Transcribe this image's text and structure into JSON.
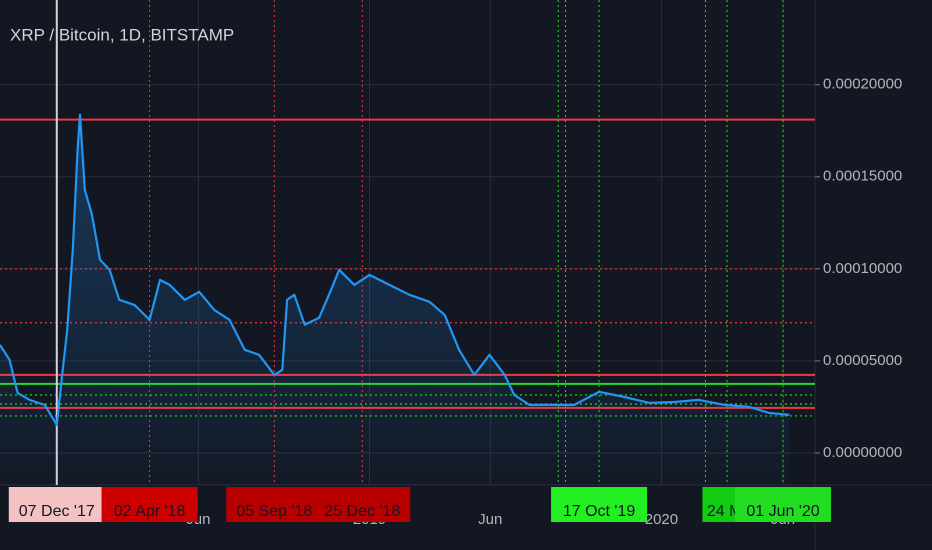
{
  "chart_data": {
    "type": "line",
    "title": "XRP / Bitcoin, 1D, BITSTAMP",
    "color": "#2196f3",
    "grid": true,
    "x": [
      "2017-09-26",
      "2017-10-08",
      "2017-10-18",
      "2017-11-02",
      "2017-11-21",
      "2017-12-06",
      "2017-12-12",
      "2017-12-19",
      "2017-12-26",
      "2018-01-01",
      "2018-01-04",
      "2018-01-10",
      "2018-01-19",
      "2018-01-29",
      "2018-02-10",
      "2018-02-22",
      "2018-03-13",
      "2018-04-01",
      "2018-04-14",
      "2018-04-26",
      "2018-05-15",
      "2018-06-02",
      "2018-06-21",
      "2018-07-10",
      "2018-07-29",
      "2018-08-16",
      "2018-09-04",
      "2018-09-14",
      "2018-09-20",
      "2018-09-29",
      "2018-10-12",
      "2018-10-30",
      "2018-11-14",
      "2018-11-24",
      "2018-12-13",
      "2019-01-01",
      "2019-01-26",
      "2019-02-20",
      "2019-03-17",
      "2019-04-05",
      "2019-04-23",
      "2019-05-12",
      "2019-05-31",
      "2019-06-19",
      "2019-07-01",
      "2019-07-20",
      "2019-08-14",
      "2019-09-14",
      "2019-10-15",
      "2019-11-16",
      "2019-12-17",
      "2020-01-17",
      "2020-02-17",
      "2020-03-20",
      "2020-04-20",
      "2020-05-15",
      "2020-06-09"
    ],
    "values": [
      5.87e-05,
      5.05e-05,
      3.26e-05,
      2.88e-05,
      2.61e-05,
      1.52e-05,
      3.97e-05,
      6.68e-05,
      0.0001103,
      0.0001647,
      0.0001837,
      0.0001429,
      0.0001293,
      0.0001049,
      9.95e-05,
      8.32e-05,
      8.04e-05,
      7.23e-05,
      9.4e-05,
      9.13e-05,
      8.32e-05,
      8.75e-05,
      7.77e-05,
      7.23e-05,
      5.6e-05,
      5.33e-05,
      4.24e-05,
      4.51e-05,
      8.32e-05,
      8.59e-05,
      6.96e-05,
      7.34e-05,
      8.86e-05,
      9.95e-05,
      9.13e-05,
      9.67e-05,
      9.13e-05,
      8.59e-05,
      8.21e-05,
      7.5e-05,
      5.6e-05,
      4.24e-05,
      5.33e-05,
      4.24e-05,
      3.15e-05,
      2.61e-05,
      2.61e-05,
      2.61e-05,
      3.32e-05,
      3.04e-05,
      2.72e-05,
      2.77e-05,
      2.88e-05,
      2.61e-05,
      2.5e-05,
      2.17e-05,
      2.07e-05
    ],
    "xlim": [
      "2017-09-26",
      "2020-07-11"
    ],
    "xticks": [
      {
        "value": "2018-06-01",
        "label": "Jun"
      },
      {
        "value": "2019-01-01",
        "label": "2019"
      },
      {
        "value": "2019-06-01",
        "label": "Jun"
      },
      {
        "value": "2020-01-01",
        "label": "2020"
      },
      {
        "value": "2020-06-01",
        "label": "Jun"
      }
    ],
    "ylim": [
      -1.74e-05,
      0.000246
    ],
    "yticks": [
      {
        "value": 0,
        "label": "0.00000000"
      },
      {
        "value": 5e-05,
        "label": "0.00005000"
      },
      {
        "value": 0.0001,
        "label": "0.00010000"
      },
      {
        "value": 0.00015,
        "label": "0.00015000"
      },
      {
        "value": 0.0002,
        "label": "0.00020000"
      }
    ],
    "levels": [
      {
        "value": 0.000181,
        "color": "#f23645",
        "style": "solid"
      },
      {
        "value": 0.0001,
        "color": "#f23645",
        "style": "dotted"
      },
      {
        "value": 7.07e-05,
        "color": "#f23645",
        "style": "dotted"
      },
      {
        "value": 4.24e-05,
        "color": "#f23645",
        "style": "solid"
      },
      {
        "value": 3.75e-05,
        "color": "#22dd22",
        "style": "solid"
      },
      {
        "value": 3.15e-05,
        "color": "#22dd22",
        "style": "dotted"
      },
      {
        "value": 2.66e-05,
        "color": "#22dd22",
        "style": "dotted"
      },
      {
        "value": 2.45e-05,
        "color": "#f23645",
        "style": "solid"
      },
      {
        "value": 2.01e-05,
        "color": "#22dd22",
        "style": "dotted"
      }
    ],
    "vlines": [
      {
        "date": "2017-12-06",
        "color": "#d1d4dc",
        "style": "solid"
      },
      {
        "date": "2018-04-01",
        "color": "#f23645",
        "style": "dotted"
      },
      {
        "date": "2018-09-04",
        "color": "#f23645",
        "style": "dotted"
      },
      {
        "date": "2018-12-23",
        "color": "#f23645",
        "style": "dotted"
      },
      {
        "date": "2019-08-25",
        "color": "#22dd22",
        "style": "dotted"
      },
      {
        "date": "2019-09-03",
        "color": "#22dd22",
        "style": "dotted"
      },
      {
        "date": "2019-10-15",
        "color": "#22dd22",
        "style": "dotted"
      },
      {
        "date": "2020-02-25",
        "color": "#22dd22",
        "style": "dotted"
      },
      {
        "date": "2020-03-23",
        "color": "#22dd22",
        "style": "dotted"
      },
      {
        "date": "2020-06-01",
        "color": "#22dd22",
        "style": "dotted"
      }
    ],
    "markers": [
      {
        "date": "2017-12-06",
        "label": "07 Dec '17",
        "color": "#f4c2c2"
      },
      {
        "date": "2018-04-01",
        "label": "02 Apr '18",
        "color": "#cc0000"
      },
      {
        "date": "2018-09-04",
        "label": "05 Sep '18",
        "color": "#b80000"
      },
      {
        "date": "2018-12-23",
        "label": "25 Dec '18",
        "color": "#b80000"
      },
      {
        "date": "2019-10-15",
        "label": "17 Oct '19",
        "color": "#22ee22"
      },
      {
        "date": "2020-03-20",
        "label": "24 M",
        "color": "#11cc11"
      },
      {
        "date": "2020-06-01",
        "label": "01 Jun '20",
        "color": "#22dd22"
      }
    ]
  }
}
